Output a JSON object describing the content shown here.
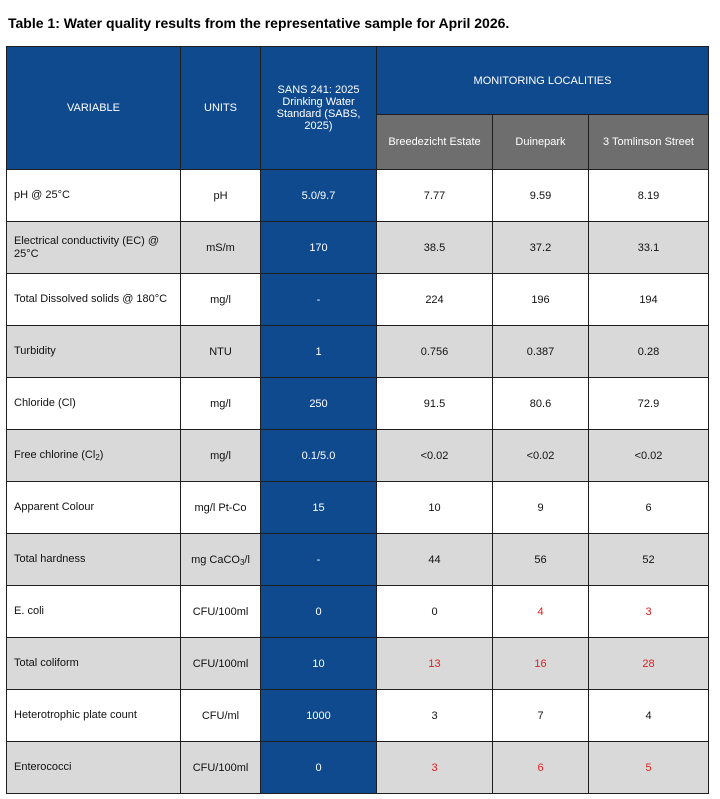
{
  "caption": "Table 1: Water quality results from the representative sample for April 2026.",
  "header": {
    "variable": "VARIABLE",
    "units": "UNITS",
    "standard": "SANS 241: 2025 Drinking Water Standard (SABS, 2025)",
    "group": "MONITORING LOCALITIES",
    "localities": [
      "Breedezicht Estate",
      "Duinepark",
      "3 Tomlinson Street"
    ]
  },
  "rows": [
    {
      "variable": "pH @ 25°C",
      "units": "pH",
      "standard": "5.0/9.7",
      "values": [
        "7.77",
        "9.59",
        "8.19"
      ]
    },
    {
      "variable": "Electrical conductivity (EC) @ 25°C",
      "units": "mS/m",
      "standard": "170",
      "values": [
        "38.5",
        "37.2",
        "33.1"
      ]
    },
    {
      "variable": "Total Dissolved solids @ 180°C",
      "units": "mg/l",
      "standard": "-",
      "values": [
        "224",
        "196",
        "194"
      ]
    },
    {
      "variable": "Turbidity",
      "units": "NTU",
      "standard": "1",
      "values": [
        "0.756",
        "0.387",
        "0.28"
      ]
    },
    {
      "variable": "Chloride (Cl)",
      "units": "mg/l",
      "standard": "250",
      "values": [
        "91.5",
        "80.6",
        "72.9"
      ]
    },
    {
      "variable_main": "Free chlorine (Cl",
      "variable_sub": "2",
      "variable_end": ")",
      "units": "mg/l",
      "standard": "0.1/5.0",
      "values": [
        "<0.02",
        "<0.02",
        "<0.02"
      ]
    },
    {
      "variable": "Apparent Colour",
      "units": "mg/l Pt-Co",
      "standard": "15",
      "values": [
        "10",
        "9",
        "6"
      ]
    },
    {
      "variable": "Total hardness",
      "units_main": "mg CaCO",
      "units_sub": "3",
      "units_end": "/l",
      "standard": "-",
      "values": [
        "44",
        "56",
        "52"
      ]
    },
    {
      "variable": "E. coli",
      "units": "CFU/100ml",
      "standard": "0",
      "values": [
        "0",
        "4",
        "3"
      ]
    },
    {
      "variable": "Total coliform",
      "units": "CFU/100ml",
      "standard": "10",
      "values": [
        "13",
        "16",
        "28"
      ]
    },
    {
      "variable": "Heterotrophic plate count",
      "units": "CFU/ml",
      "standard": "1000",
      "values": [
        "3",
        "7",
        "4"
      ]
    },
    {
      "variable": "Enterococci",
      "units": "CFU/100ml",
      "standard": "0",
      "values": [
        "3",
        "6",
        "5"
      ]
    }
  ],
  "exceed_color": "#e02020",
  "standard_color": "#0f4a8f",
  "locality_header_color": "#6e6e6e"
}
